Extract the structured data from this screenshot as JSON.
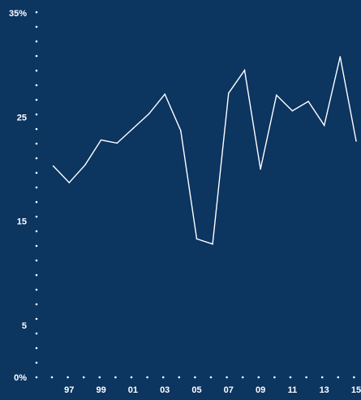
{
  "colors": {
    "background": "#0c3560",
    "line": "#ffffff",
    "text": "#ffffff"
  },
  "chart_data": {
    "type": "line",
    "title": "",
    "xlabel": "",
    "ylabel": "",
    "x_tick_labels": [
      "97",
      "99",
      "01",
      "03",
      "05",
      "07",
      "09",
      "11",
      "13",
      "15"
    ],
    "y_tick_labels": [
      "0%",
      "5",
      "15",
      "25",
      "35%"
    ],
    "y_tick_values": [
      0,
      5,
      15,
      25,
      35
    ],
    "ylim": [
      0,
      35
    ],
    "xlim": [
      1995,
      2015
    ],
    "grid": false,
    "axis_style": "dotted",
    "series": [
      {
        "x": [
          1996,
          1997,
          1998,
          1999,
          2000,
          2001,
          2002,
          2003,
          2004,
          2005,
          2006,
          2007,
          2008,
          2009,
          2010,
          2011,
          2012,
          2013,
          2014,
          2015
        ],
        "values": [
          20.3,
          18.7,
          20.4,
          22.8,
          22.5,
          23.9,
          25.3,
          27.2,
          23.7,
          13.3,
          12.8,
          27.3,
          29.5,
          20.0,
          27.1,
          25.6,
          26.5,
          24.2,
          30.8,
          22.7
        ]
      }
    ]
  }
}
